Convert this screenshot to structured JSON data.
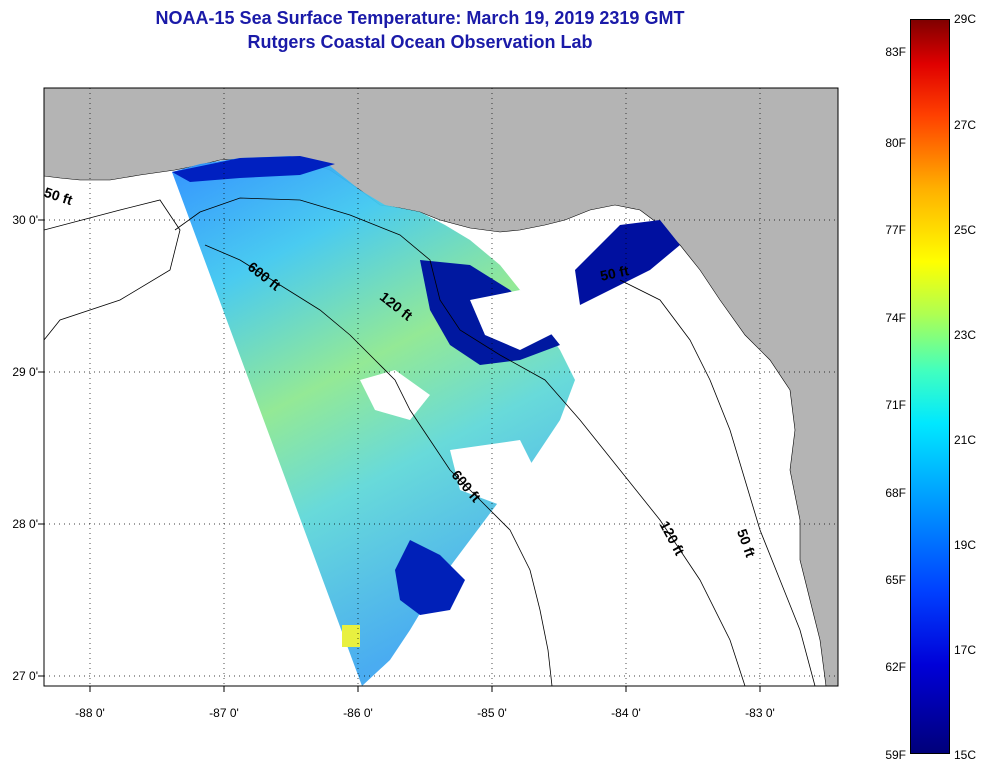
{
  "title": "NOAA-15 Sea Surface Temperature:  March 19, 2019 2319 GMT",
  "subtitle": "Rutgers Coastal Ocean Observation Lab",
  "map": {
    "lat_labels": [
      "30 0'",
      "29 0'",
      "28 0'",
      "27 0'"
    ],
    "lon_labels": [
      "-88 0'",
      "-87 0'",
      "-86 0'",
      "-85 0'",
      "-84 0'",
      "-83 0'"
    ],
    "contour_labels": [
      "50 ft",
      "600 ft",
      "120 ft",
      "50 ft",
      "600 ft",
      "120 ft",
      "50 ft"
    ],
    "land_color": "#b4b4b4",
    "grid": "dotted"
  },
  "colorbar": {
    "fahrenheit_labels": [
      "83F",
      "80F",
      "77F",
      "74F",
      "71F",
      "68F",
      "65F",
      "62F",
      "59F"
    ],
    "celsius_labels": [
      "29C",
      "27C",
      "25C",
      "23C",
      "21C",
      "19C",
      "17C",
      "15C"
    ],
    "range_c": [
      15,
      29
    ],
    "range_f": [
      59,
      84.2
    ]
  }
}
